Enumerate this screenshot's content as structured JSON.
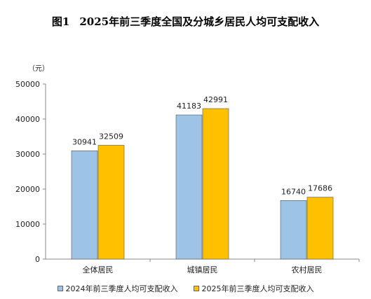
{
  "chart_data": {
    "type": "bar",
    "title_prefix": "图1",
    "title": "2025年前三季度全国及分城乡居民人均可支配收入",
    "unit_label": "（元）",
    "categories": [
      "全体居民",
      "城镇居民",
      "农村居民"
    ],
    "series": [
      {
        "name": "2024年前三季度人均可支配收入",
        "values": [
          30941,
          41183,
          16740
        ],
        "color": "#9DC3E6"
      },
      {
        "name": "2025年前三季度人均可支配收入",
        "values": [
          32509,
          42991,
          17686
        ],
        "color": "#FFC000"
      }
    ],
    "ylim": [
      0,
      50000
    ],
    "yticks": [
      0,
      10000,
      20000,
      30000,
      40000,
      50000
    ],
    "grid": false,
    "legend_position": "bottom"
  }
}
